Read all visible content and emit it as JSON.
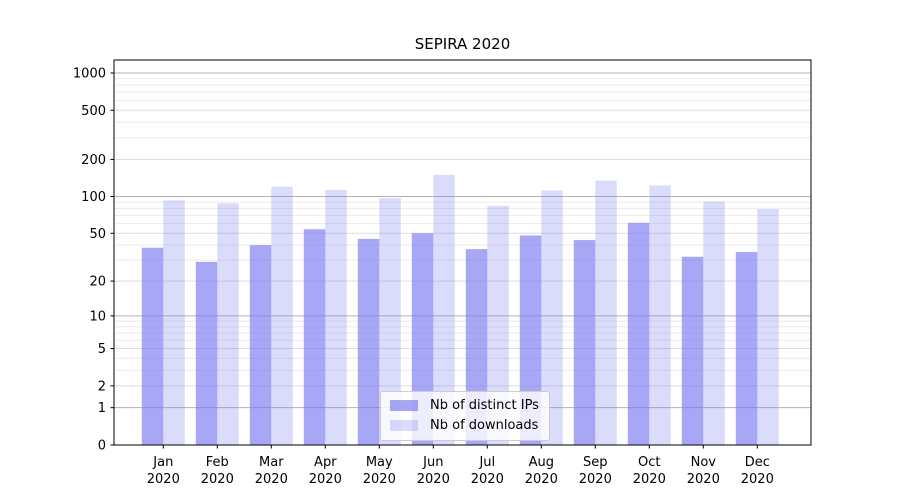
{
  "chart_data": {
    "type": "bar",
    "title": "SEPIRA 2020",
    "categories": [
      "Jan 2020",
      "Feb 2020",
      "Mar 2020",
      "Apr 2020",
      "May 2020",
      "Jun 2020",
      "Jul 2020",
      "Aug 2020",
      "Sep 2020",
      "Oct 2020",
      "Nov 2020",
      "Dec 2020"
    ],
    "series": [
      {
        "name": "Nb of distinct IPs",
        "color": "#7a7af0",
        "opacity": 0.66,
        "values": [
          38,
          29,
          40,
          54,
          45,
          50,
          37,
          48,
          44,
          61,
          32,
          35
        ]
      },
      {
        "name": "Nb of downloads",
        "color": "#7a7af0",
        "opacity": 0.27,
        "values": [
          93,
          88,
          120,
          113,
          97,
          150,
          84,
          112,
          135,
          123,
          91,
          79
        ]
      }
    ],
    "xlabel": "",
    "ylabel": "",
    "yscale": "log-like (log10(1+v))",
    "yticks": [
      0,
      1,
      2,
      5,
      10,
      20,
      50,
      100,
      200,
      500,
      1000
    ],
    "ylim": [
      0,
      1000
    ],
    "grid": true,
    "legend_position": "lower center",
    "colors": {
      "bar_base": "#7a7af0",
      "grid_major": "#b3b3b3",
      "grid_mid": "#dddddd",
      "grid_minor": "#ebebeb",
      "spine": "#000000",
      "background": "#ffffff"
    }
  }
}
